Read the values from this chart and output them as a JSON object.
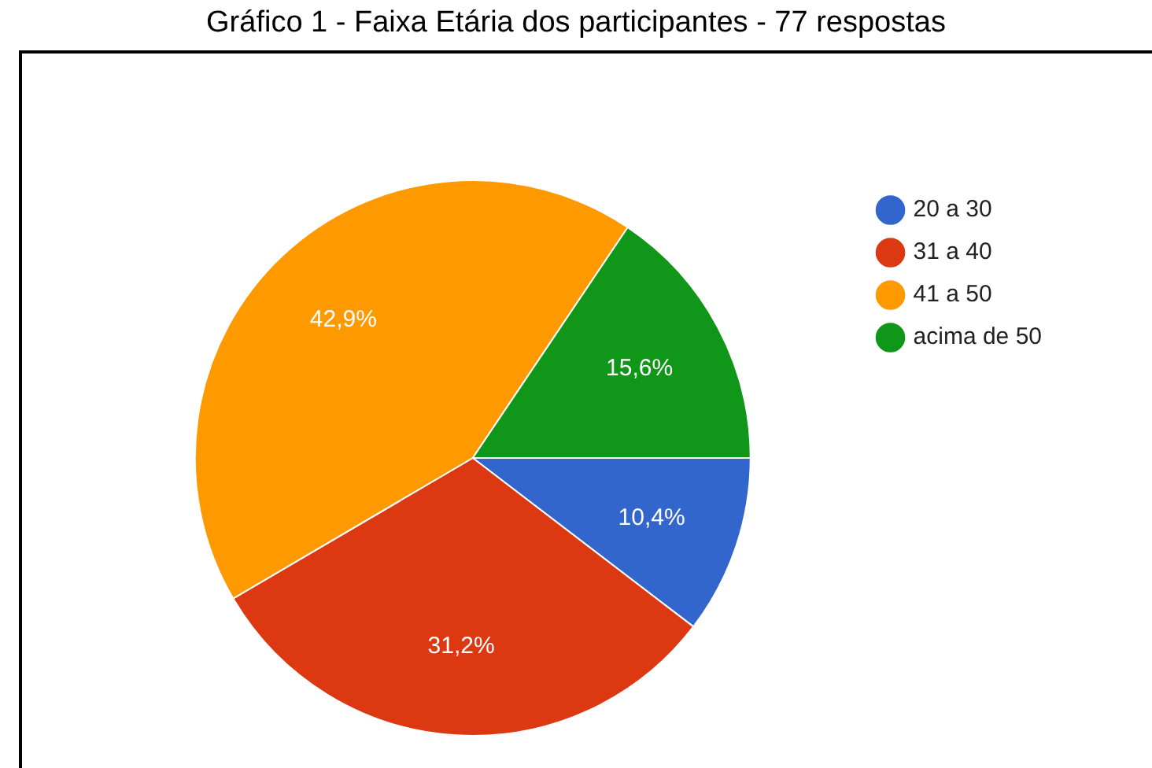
{
  "chart_data": {
    "type": "pie",
    "title": "Gráfico 1 - Faixa Etária dos participantes - 77 respostas",
    "categories": [
      "20 a 30",
      "31 a 40",
      "41 a 50",
      "acima de 50"
    ],
    "values": [
      10.4,
      31.2,
      42.9,
      15.6
    ],
    "colors": [
      "#3366cc",
      "#dc3912",
      "#ff9900",
      "#109618"
    ],
    "value_labels": [
      "10,4%",
      "31,2%",
      "42,9%",
      "15,6%"
    ],
    "legend": "right"
  }
}
